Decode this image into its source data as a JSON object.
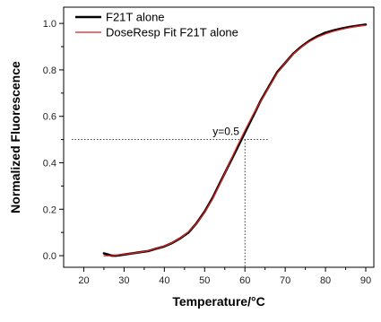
{
  "chart_data": {
    "type": "line",
    "xlabel": "Temperature/°C",
    "ylabel": "Normalized Fluorescence",
    "xlim": [
      15,
      92
    ],
    "ylim": [
      -0.05,
      1.07
    ],
    "xticks": [
      20,
      30,
      40,
      50,
      60,
      70,
      80,
      90
    ],
    "yticks": [
      0.0,
      0.2,
      0.4,
      0.6,
      0.8,
      1.0
    ],
    "x_tick_labels": [
      "20",
      "30",
      "40",
      "50",
      "60",
      "70",
      "80",
      "90"
    ],
    "y_tick_labels": [
      "0.0",
      "0.2",
      "0.4",
      "0.6",
      "0.8",
      "1.0"
    ],
    "legend_position": "top-left",
    "series": [
      {
        "name": "F21T alone",
        "color": "#000000",
        "x": [
          25,
          26,
          27,
          28,
          30,
          32,
          34,
          36,
          38,
          40,
          42,
          44,
          46,
          48,
          50,
          52,
          54,
          56,
          58,
          60,
          62,
          64,
          66,
          68,
          70,
          72,
          74,
          76,
          78,
          80,
          82,
          84,
          86,
          88,
          90
        ],
        "y": [
          0.01,
          0.005,
          0.0,
          0.0,
          0.005,
          0.01,
          0.015,
          0.02,
          0.03,
          0.04,
          0.055,
          0.075,
          0.1,
          0.14,
          0.19,
          0.25,
          0.32,
          0.39,
          0.46,
          0.53,
          0.6,
          0.67,
          0.73,
          0.79,
          0.83,
          0.87,
          0.9,
          0.925,
          0.945,
          0.96,
          0.97,
          0.978,
          0.985,
          0.99,
          0.995
        ]
      },
      {
        "name": "DoseResp Fit F21T alone",
        "color": "#d62020",
        "x": [
          25,
          26,
          27,
          28,
          30,
          32,
          34,
          36,
          38,
          40,
          42,
          44,
          46,
          48,
          50,
          52,
          54,
          56,
          58,
          60,
          62,
          64,
          66,
          68,
          70,
          72,
          74,
          76,
          78,
          80,
          82,
          84,
          86,
          88,
          90
        ],
        "y": [
          0.0,
          0.0,
          0.0,
          0.002,
          0.006,
          0.01,
          0.015,
          0.021,
          0.03,
          0.041,
          0.056,
          0.076,
          0.103,
          0.139,
          0.187,
          0.246,
          0.316,
          0.392,
          0.468,
          0.539,
          0.606,
          0.667,
          0.727,
          0.786,
          0.83,
          0.868,
          0.898,
          0.922,
          0.941,
          0.955,
          0.966,
          0.975,
          0.982,
          0.988,
          0.992
        ]
      }
    ],
    "annotations": [
      {
        "text": "y=0.5",
        "kind": "horizontal-dotted-line",
        "y": 0.5,
        "x_range": [
          17,
          66
        ]
      },
      {
        "text": "",
        "kind": "vertical-dotted-line",
        "x": 60,
        "y_range": [
          -0.05,
          0.5
        ]
      }
    ]
  }
}
